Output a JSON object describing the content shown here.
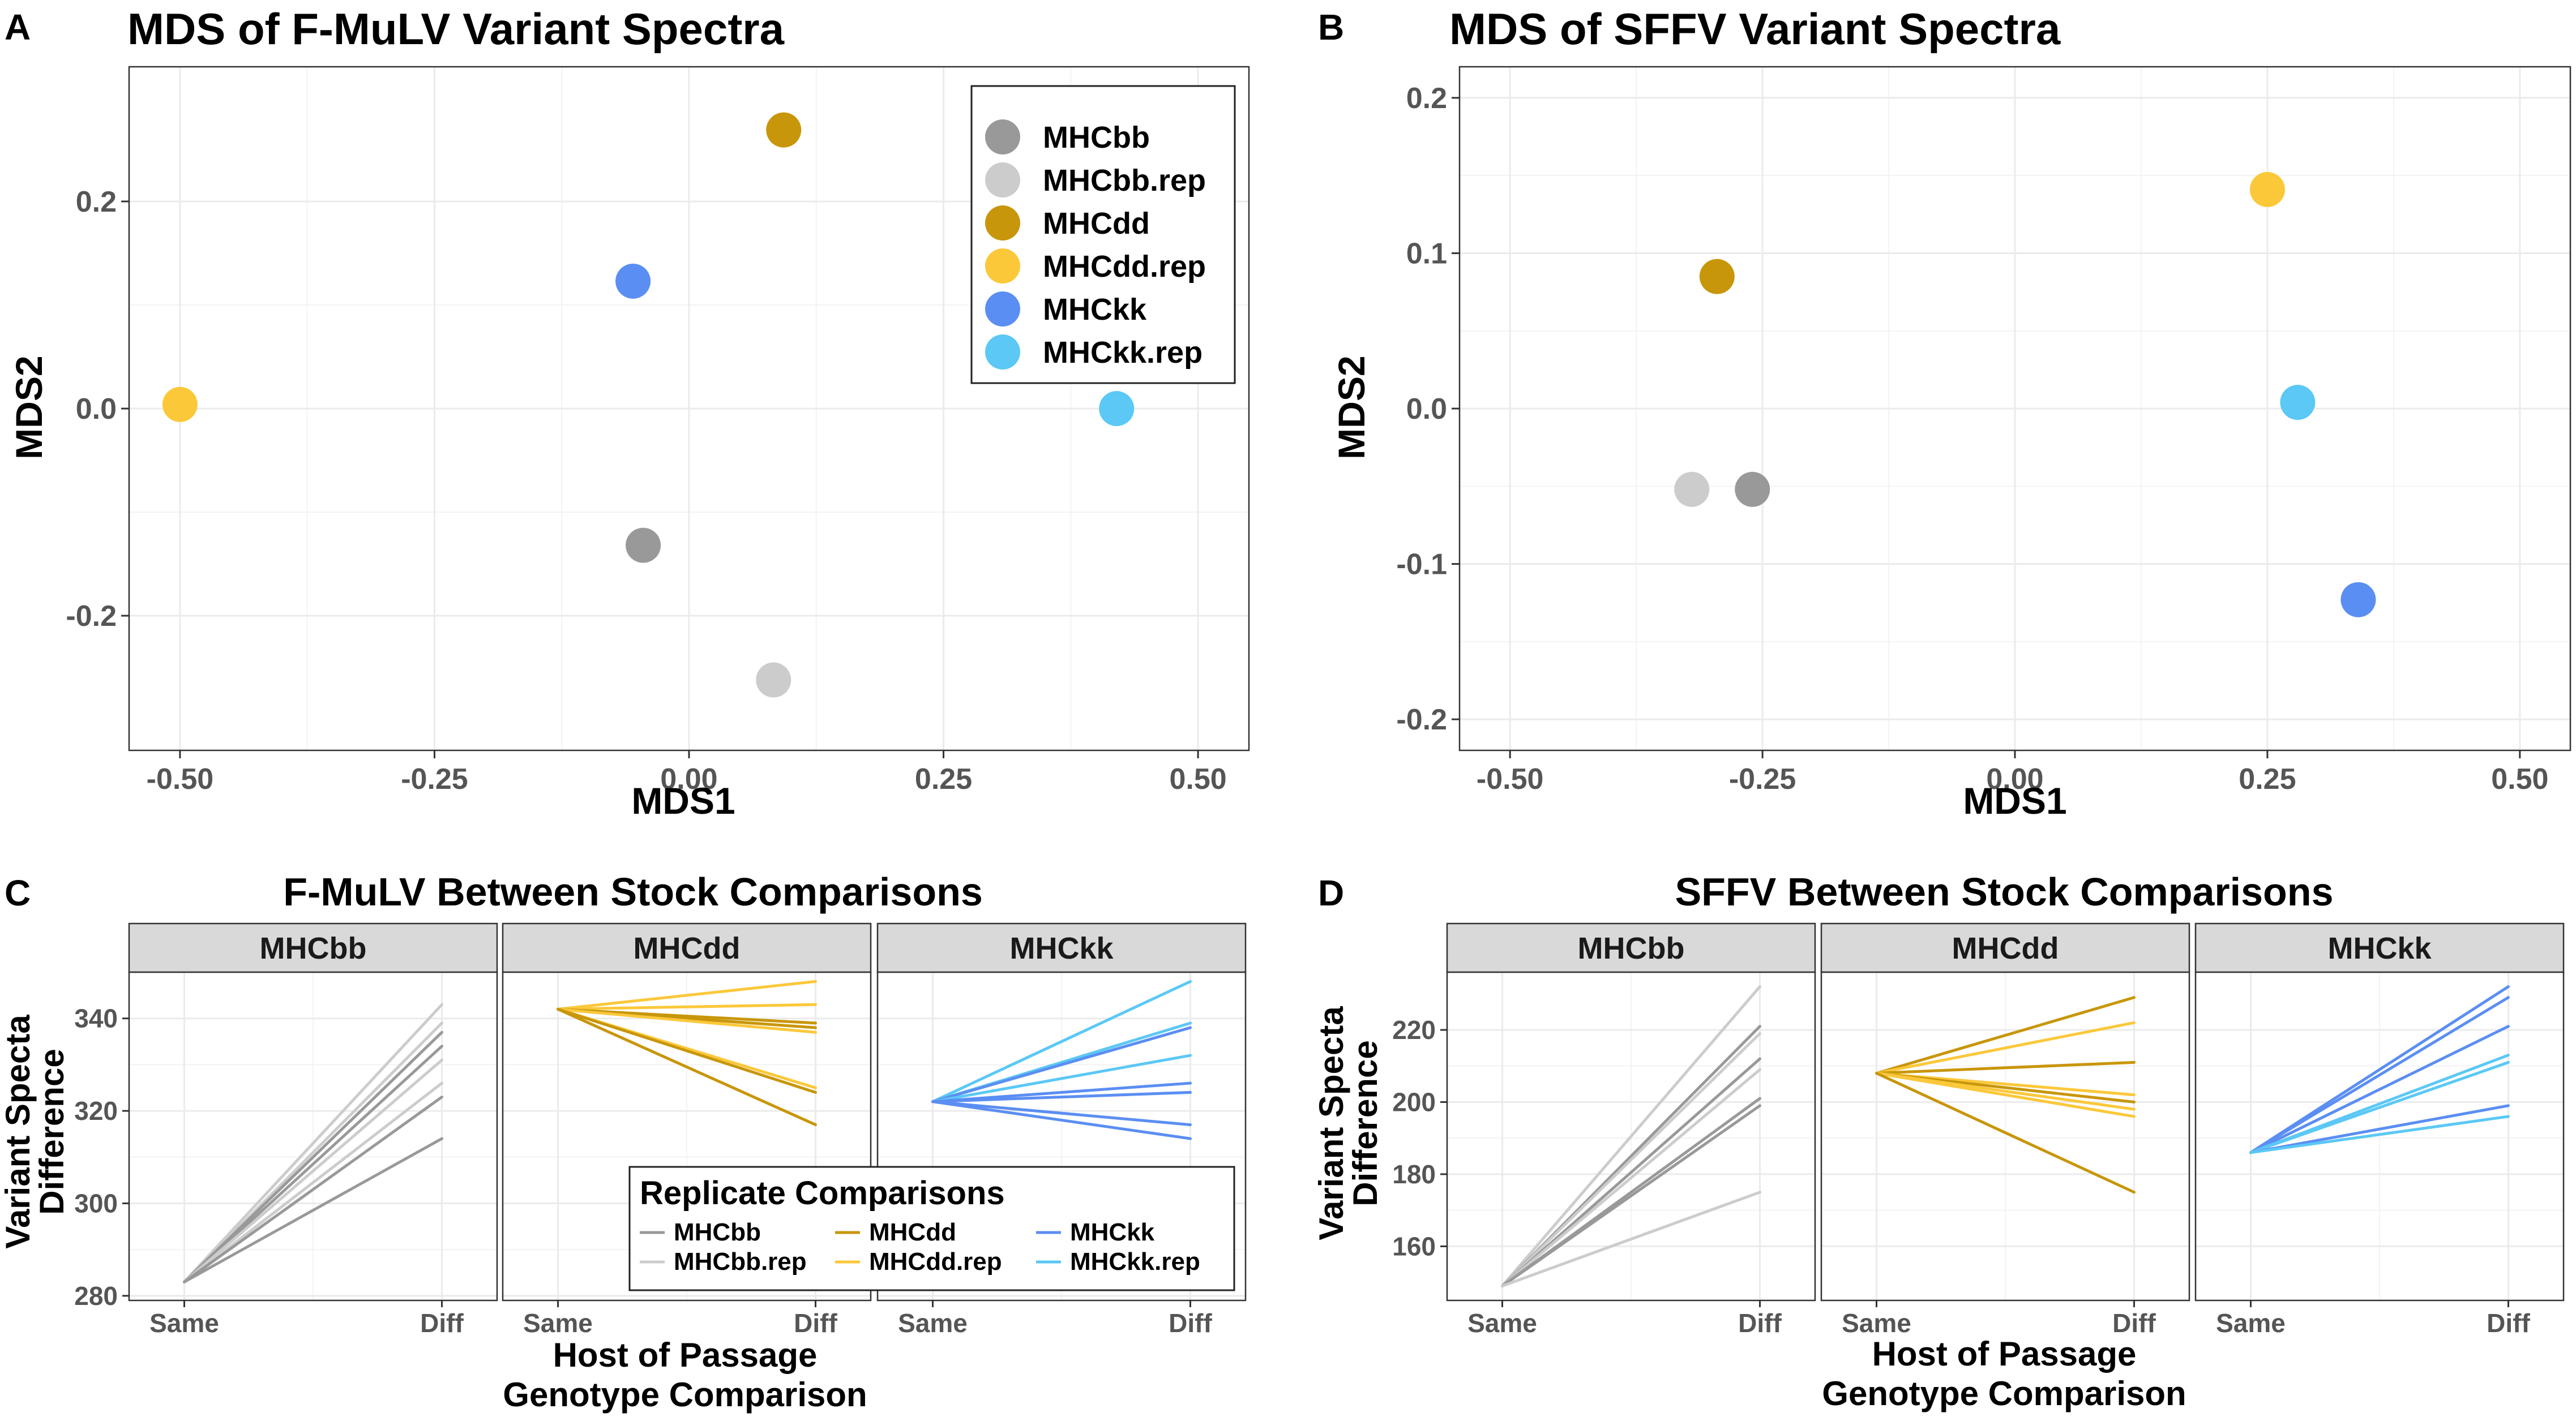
{
  "panel_letters": {
    "a": "A",
    "b": "B",
    "c": "C",
    "d": "D"
  },
  "colors": {
    "MHCbb": "#999999",
    "MHCbb.rep": "#cccccc",
    "MHCdd": "#c8960a",
    "MHCdd.rep": "#fbc83a",
    "MHCkk": "#5b8ef2",
    "MHCkk.rep": "#5bc8f5",
    "grid": "#ebebeb",
    "strip_bg": "#d9d9d9"
  },
  "chart_data": [
    {
      "id": "A",
      "type": "scatter",
      "title": "MDS of F-MuLV Variant Spectra",
      "xlabel": "MDS1",
      "ylabel": "MDS2",
      "xlim": [
        -0.55,
        0.55
      ],
      "ylim": [
        -0.33,
        0.33
      ],
      "xticks": [
        -0.5,
        -0.25,
        0.0,
        0.25,
        0.5
      ],
      "xtick_labels": [
        "-0.50",
        "-0.25",
        "0.00",
        "0.25",
        "0.50"
      ],
      "yticks": [
        -0.2,
        0.0,
        0.2
      ],
      "ytick_labels": [
        "-0.2",
        "0.0",
        "0.2"
      ],
      "legend_position": "top-right",
      "legend": [
        "MHCbb",
        "MHCbb.rep",
        "MHCdd",
        "MHCdd.rep",
        "MHCkk",
        "MHCkk.rep"
      ],
      "points": [
        {
          "series": "MHCbb",
          "x": -0.045,
          "y": -0.132
        },
        {
          "series": "MHCbb.rep",
          "x": 0.083,
          "y": -0.262
        },
        {
          "series": "MHCdd",
          "x": 0.093,
          "y": 0.269
        },
        {
          "series": "MHCdd.rep",
          "x": -0.5,
          "y": 0.004
        },
        {
          "series": "MHCkk",
          "x": -0.055,
          "y": 0.123
        },
        {
          "series": "MHCkk.rep",
          "x": 0.42,
          "y": 0.0
        }
      ]
    },
    {
      "id": "B",
      "type": "scatter",
      "title": "MDS of SFFV Variant Spectra",
      "xlabel": "MDS1",
      "ylabel": "MDS2",
      "xlim": [
        -0.55,
        0.55
      ],
      "ylim": [
        -0.22,
        0.22
      ],
      "xticks": [
        -0.5,
        -0.25,
        0.0,
        0.25,
        0.5
      ],
      "xtick_labels": [
        "-0.50",
        "-0.25",
        "0.00",
        "0.25",
        "0.50"
      ],
      "yticks": [
        -0.2,
        -0.1,
        0.0,
        0.1,
        0.2
      ],
      "ytick_labels": [
        "-0.2",
        "-0.1",
        "0.0",
        "0.1",
        "0.2"
      ],
      "points": [
        {
          "series": "MHCbb",
          "x": -0.26,
          "y": -0.052
        },
        {
          "series": "MHCbb.rep",
          "x": -0.32,
          "y": -0.052
        },
        {
          "series": "MHCdd",
          "x": -0.295,
          "y": 0.085
        },
        {
          "series": "MHCdd.rep",
          "x": 0.25,
          "y": 0.141
        },
        {
          "series": "MHCkk",
          "x": 0.34,
          "y": -0.123
        },
        {
          "series": "MHCkk.rep",
          "x": 0.28,
          "y": 0.004
        }
      ]
    },
    {
      "id": "C",
      "type": "line",
      "title": "F-MuLV Between Stock Comparisons",
      "xlabel": "Host of Passage\nGenotype Comparison",
      "xlabel_lines": [
        "Host of Passage",
        "Genotype Comparison"
      ],
      "ylabel_lines": [
        "Variant Specta",
        "Difference"
      ],
      "categories": [
        "Same",
        "Diff"
      ],
      "ylim": [
        279,
        350
      ],
      "yticks": [
        280,
        300,
        320,
        340
      ],
      "ytick_labels": [
        "280",
        "300",
        "320",
        "340"
      ],
      "legend_title": "Replicate Comparisons",
      "legend": [
        "MHCbb",
        "MHCbb.rep",
        "MHCdd",
        "MHCdd.rep",
        "MHCkk",
        "MHCkk.rep"
      ],
      "facets": [
        {
          "label": "MHCbb",
          "same": 283,
          "lines": [
            {
              "series": "MHCbb.rep",
              "diff": 343
            },
            {
              "series": "MHCbb.rep",
              "diff": 339
            },
            {
              "series": "MHCbb",
              "diff": 337
            },
            {
              "series": "MHCbb",
              "diff": 334
            },
            {
              "series": "MHCbb.rep",
              "diff": 331
            },
            {
              "series": "MHCbb.rep",
              "diff": 326
            },
            {
              "series": "MHCbb",
              "diff": 323
            },
            {
              "series": "MHCbb",
              "diff": 314
            }
          ]
        },
        {
          "label": "MHCdd",
          "same": 342,
          "lines": [
            {
              "series": "MHCdd.rep",
              "diff": 348
            },
            {
              "series": "MHCdd.rep",
              "diff": 343
            },
            {
              "series": "MHCdd",
              "diff": 339
            },
            {
              "series": "MHCdd",
              "diff": 338
            },
            {
              "series": "MHCdd.rep",
              "diff": 337
            },
            {
              "series": "MHCdd.rep",
              "diff": 325
            },
            {
              "series": "MHCdd",
              "diff": 324
            },
            {
              "series": "MHCdd",
              "diff": 317
            }
          ]
        },
        {
          "label": "MHCkk",
          "same": 322,
          "lines": [
            {
              "series": "MHCkk.rep",
              "diff": 348
            },
            {
              "series": "MHCkk.rep",
              "diff": 339
            },
            {
              "series": "MHCkk",
              "diff": 338
            },
            {
              "series": "MHCkk.rep",
              "diff": 332
            },
            {
              "series": "MHCkk",
              "diff": 326
            },
            {
              "series": "MHCkk",
              "diff": 324
            },
            {
              "series": "MHCkk",
              "diff": 317
            },
            {
              "series": "MHCkk",
              "diff": 314
            }
          ]
        }
      ]
    },
    {
      "id": "D",
      "type": "line",
      "title": "SFFV Between Stock Comparisons",
      "xlabel": "Host of Passage\nGenotype Comparison",
      "xlabel_lines": [
        "Host of Passage",
        "Genotype Comparison"
      ],
      "ylabel_lines": [
        "Variant Specta",
        "Difference"
      ],
      "categories": [
        "Same",
        "Diff"
      ],
      "ylim": [
        145,
        236
      ],
      "yticks": [
        160,
        180,
        200,
        220
      ],
      "ytick_labels": [
        "160",
        "180",
        "200",
        "220"
      ],
      "facets": [
        {
          "label": "MHCbb",
          "same": 149,
          "lines": [
            {
              "series": "MHCbb.rep",
              "diff": 232
            },
            {
              "series": "MHCbb",
              "diff": 221
            },
            {
              "series": "MHCbb.rep",
              "diff": 219
            },
            {
              "series": "MHCbb",
              "diff": 212
            },
            {
              "series": "MHCbb.rep",
              "diff": 209
            },
            {
              "series": "MHCbb",
              "diff": 201
            },
            {
              "series": "MHCbb",
              "diff": 199
            },
            {
              "series": "MHCbb.rep",
              "diff": 175
            }
          ]
        },
        {
          "label": "MHCdd",
          "same": 208,
          "lines": [
            {
              "series": "MHCdd",
              "diff": 229
            },
            {
              "series": "MHCdd.rep",
              "diff": 222
            },
            {
              "series": "MHCdd",
              "diff": 211
            },
            {
              "series": "MHCdd.rep",
              "diff": 202
            },
            {
              "series": "MHCdd",
              "diff": 200
            },
            {
              "series": "MHCdd.rep",
              "diff": 198
            },
            {
              "series": "MHCdd.rep",
              "diff": 196
            },
            {
              "series": "MHCdd",
              "diff": 175
            }
          ]
        },
        {
          "label": "MHCkk",
          "same": 186,
          "lines": [
            {
              "series": "MHCkk",
              "diff": 232
            },
            {
              "series": "MHCkk",
              "diff": 229
            },
            {
              "series": "MHCkk",
              "diff": 221
            },
            {
              "series": "MHCkk.rep",
              "diff": 213
            },
            {
              "series": "MHCkk.rep",
              "diff": 211
            },
            {
              "series": "MHCkk",
              "diff": 199
            },
            {
              "series": "MHCkk.rep",
              "diff": 196
            }
          ]
        }
      ]
    }
  ]
}
